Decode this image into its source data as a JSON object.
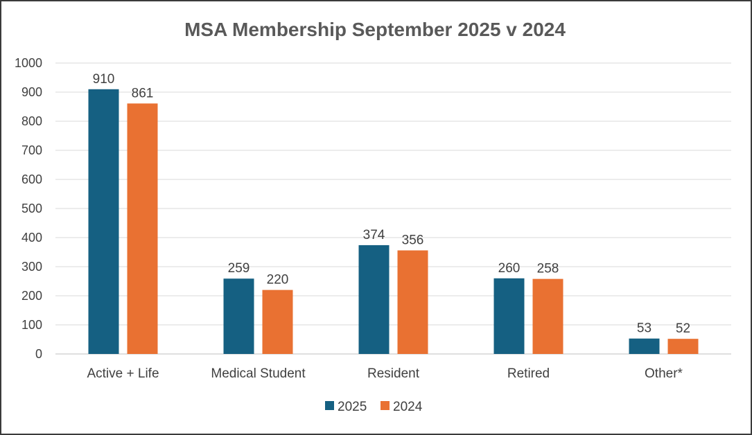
{
  "chart_data": {
    "type": "bar",
    "title": "MSA Membership September 2025 v 2024",
    "categories": [
      "Active + Life",
      "Medical Student",
      "Resident",
      "Retired",
      "Other*"
    ],
    "series": [
      {
        "name": "2025",
        "color": "#156082",
        "values": [
          910,
          259,
          374,
          260,
          53
        ]
      },
      {
        "name": "2024",
        "color": "#E97132",
        "values": [
          861,
          220,
          356,
          258,
          52
        ]
      }
    ],
    "y_ticks": [
      "0",
      "100",
      "200",
      "300",
      "400",
      "500",
      "600",
      "700",
      "800",
      "900",
      "1000"
    ],
    "ylim": [
      0,
      1000
    ],
    "xlabel": "",
    "ylabel": "",
    "grid": true,
    "legend_position": "bottom"
  }
}
